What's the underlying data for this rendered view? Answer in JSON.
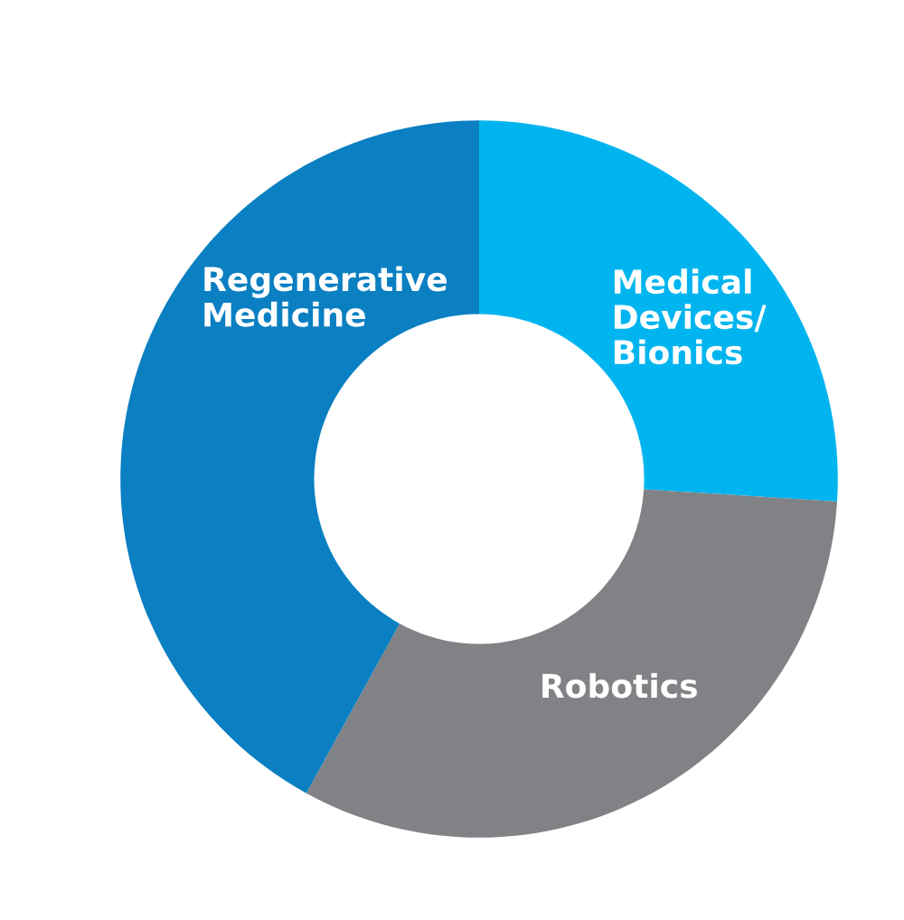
{
  "chart_data": {
    "type": "donut",
    "categories": [
      "Medical\nDevices/\nBionics",
      "Robotics",
      "Regenerative\nMedicine"
    ],
    "values": [
      26,
      32,
      42
    ],
    "colors": [
      "#00b5ef",
      "#808285",
      "#0a7fc2"
    ]
  }
}
